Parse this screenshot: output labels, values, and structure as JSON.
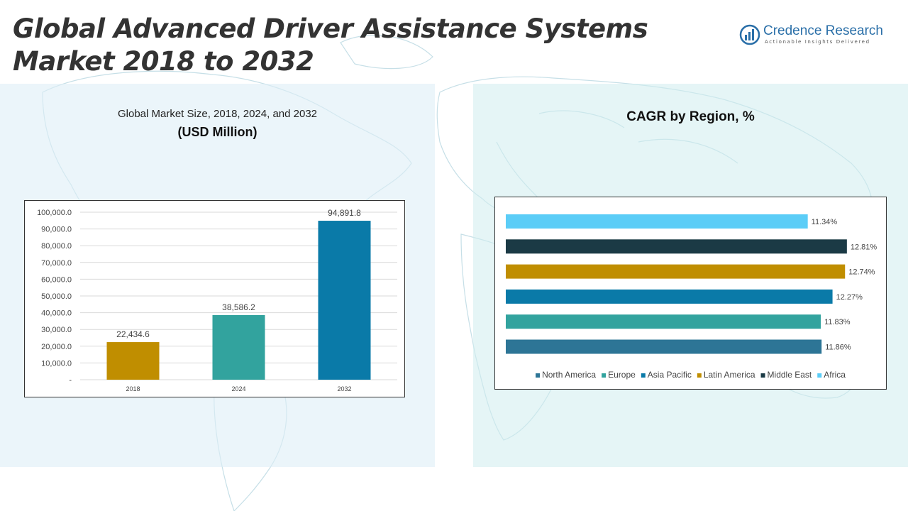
{
  "page": {
    "title_line1": "Global Advanced Driver Assistance Systems",
    "title_line2": "Market 2018 to 2032"
  },
  "logo": {
    "name": "Credence Research",
    "tagline": "Actionable Insights Delivered",
    "icon": "credence-logo-icon",
    "color": "#2a6fa8"
  },
  "left_panel": {
    "title": "Global Market Size, 2018, 2024, and 2032",
    "subtitle": "(USD Million)"
  },
  "right_panel": {
    "title": "CAGR by Region, %"
  },
  "chart_data": [
    {
      "type": "bar",
      "title": "Global Market Size, 2018, 2024, and 2032",
      "ylabel": "(USD Million)",
      "categories": [
        "2018",
        "2024",
        "2032"
      ],
      "values": [
        22434.6,
        38586.2,
        94891.8
      ],
      "value_labels": [
        "22,434.6",
        "38,586.2",
        "94,891.8"
      ],
      "colors": [
        "#c08e00",
        "#32a39e",
        "#0a7aa8"
      ],
      "ylim": [
        0,
        100000
      ],
      "yticks": [
        0,
        10000,
        20000,
        30000,
        40000,
        50000,
        60000,
        70000,
        80000,
        90000,
        100000
      ],
      "ytick_labels": [
        "-",
        "10,000.0",
        "20,000.0",
        "30,000.0",
        "40,000.0",
        "50,000.0",
        "60,000.0",
        "70,000.0",
        "80,000.0",
        "90,000.0",
        "100,000.0"
      ],
      "grid": true
    },
    {
      "type": "bar",
      "orientation": "horizontal",
      "title": "CAGR by Region, %",
      "categories": [
        "North America",
        "Europe",
        "Asia Pacific",
        "Latin America",
        "Middle East",
        "Africa"
      ],
      "values": [
        11.86,
        11.83,
        12.27,
        12.74,
        12.81,
        11.34
      ],
      "value_labels": [
        "11.86%",
        "11.83%",
        "12.27%",
        "12.74%",
        "12.81%",
        "11.34%"
      ],
      "colors": [
        "#2d7596",
        "#32a39e",
        "#0a7aa8",
        "#c08e00",
        "#1b3a45",
        "#5bcdf7"
      ],
      "legend": "bottom",
      "grid": false
    }
  ]
}
